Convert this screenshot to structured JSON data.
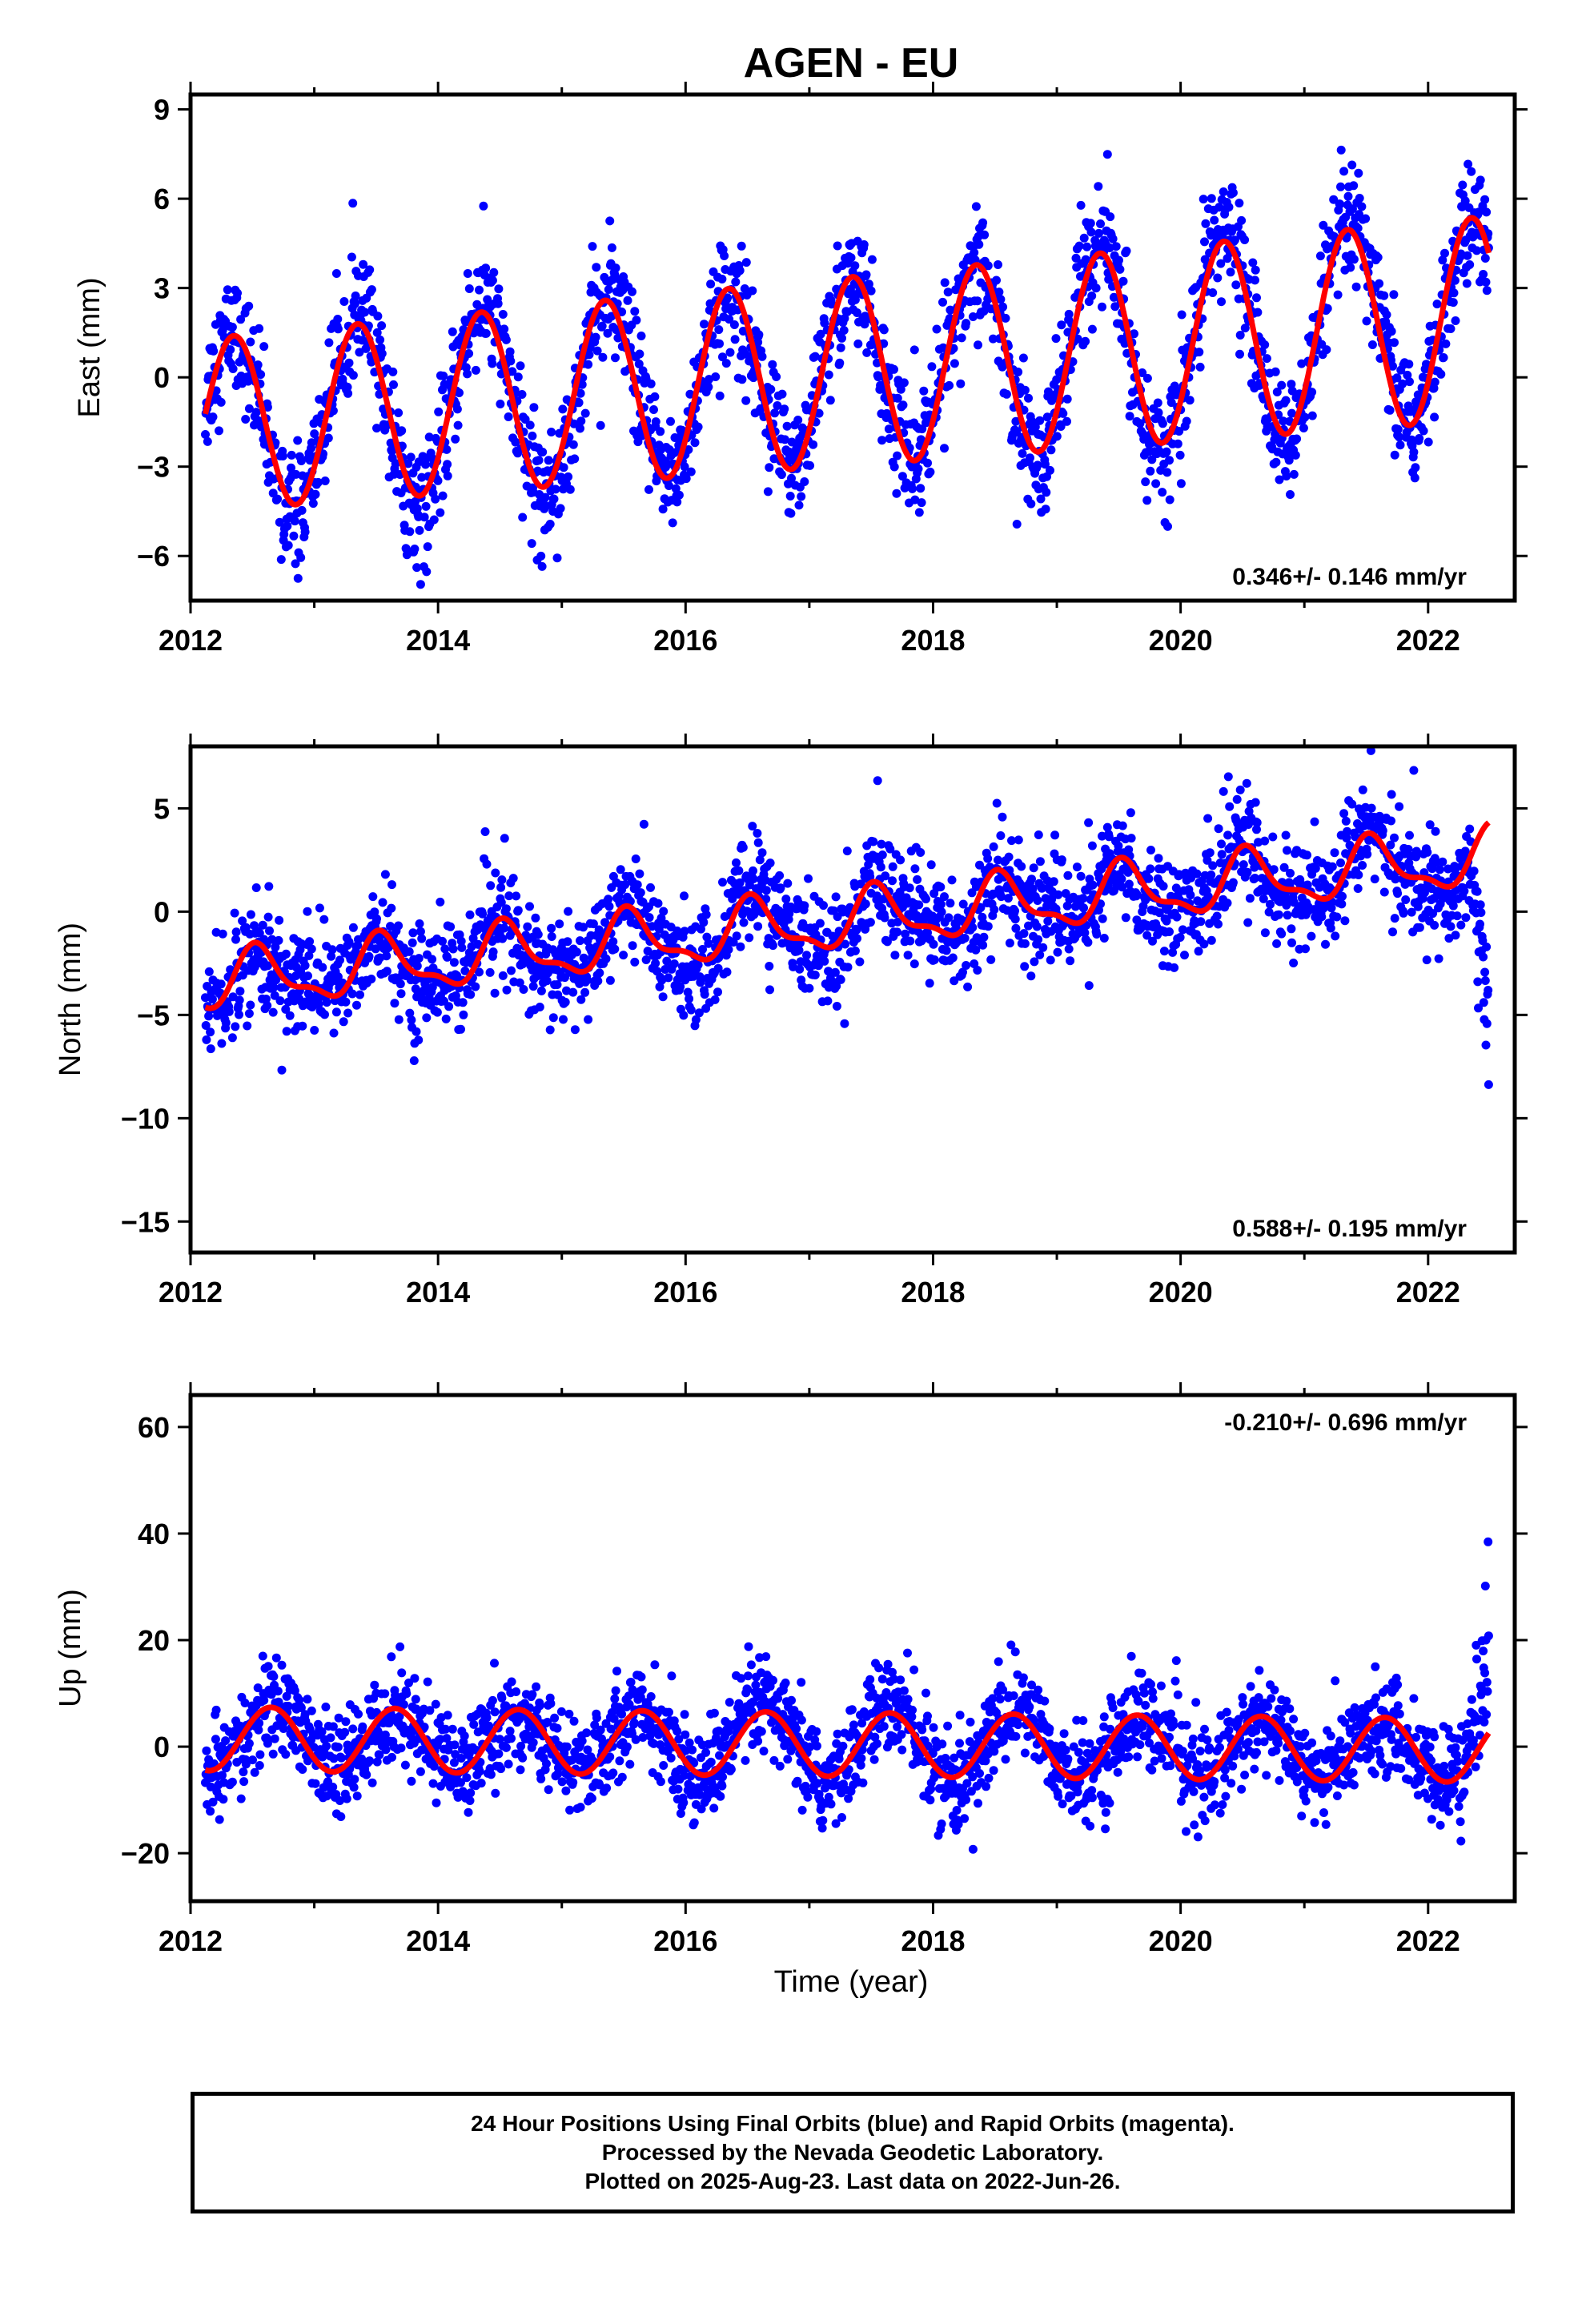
{
  "title": "AGEN - EU",
  "xlabel": "Time (year)",
  "footer": {
    "line1": "24 Hour Positions Using Final Orbits (blue) and Rapid Orbits (magenta).",
    "line2": "Processed by the Nevada Geodetic Laboratory.",
    "line3": "Plotted on 2025-Aug-23. Last data on 2022-Jun-26."
  },
  "colors": {
    "points": "#0000ff",
    "fit": "#ff0000",
    "frame": "#000000"
  },
  "chart_data": [
    {
      "type": "scatter",
      "ylabel": "East (mm)",
      "rate_text": "0.346+/- 0.146 mm/yr",
      "legend_position": "bottom-right",
      "xlim": [
        2012.0,
        2022.7
      ],
      "ylim": [
        -7.5,
        9.5
      ],
      "xticks": [
        "2012",
        "2014",
        "2016",
        "2018",
        "2020",
        "2022"
      ],
      "yticks": [
        -6,
        -3,
        0,
        3,
        6,
        9
      ],
      "fit": {
        "intercept": -1.6,
        "rate": 0.346,
        "annual_amplitude": 2.9,
        "amplitude_growth_per_year": 0.05,
        "annual_peak": 0.35,
        "semiannual_amplitude": 0.0
      },
      "scatter_sd": 1.0,
      "series": [
        {
          "name": "Final Orbits (blue)",
          "style": "points"
        },
        {
          "name": "fit",
          "style": "line"
        }
      ]
    },
    {
      "type": "scatter",
      "ylabel": "North (mm)",
      "rate_text": "0.588+/- 0.195 mm/yr",
      "legend_position": "bottom-right",
      "xlim": [
        2012.0,
        2022.7
      ],
      "ylim": [
        -16.5,
        8.0
      ],
      "xticks": [
        "2012",
        "2014",
        "2016",
        "2018",
        "2020",
        "2022"
      ],
      "yticks": [
        -15,
        -10,
        -5,
        0,
        5
      ],
      "fit": {
        "intercept": -3.5,
        "rate": 0.588,
        "annual_amplitude": 1.3,
        "annual_peak": 0.55,
        "semiannual_amplitude": 0.5,
        "semiannual_peak": 0.5
      },
      "scatter_sd": 1.3,
      "series": [
        {
          "name": "Final Orbits (blue)",
          "style": "points"
        },
        {
          "name": "fit",
          "style": "line"
        }
      ]
    },
    {
      "type": "scatter",
      "ylabel": "Up (mm)",
      "rate_text": "-0.210+/- 0.696 mm/yr",
      "legend_position": "top-right",
      "xlim": [
        2012.0,
        2022.7
      ],
      "ylim": [
        -29,
        66
      ],
      "xticks": [
        "2012",
        "2014",
        "2016",
        "2018",
        "2020",
        "2022"
      ],
      "yticks": [
        -20,
        0,
        20,
        40,
        60
      ],
      "fit": {
        "intercept": 1.5,
        "rate": -0.21,
        "annual_amplitude": 6.0,
        "annual_peak": 0.65,
        "semiannual_amplitude": 0.0
      },
      "scatter_sd": 4.5,
      "series": [
        {
          "name": "Final Orbits (blue)",
          "style": "points"
        },
        {
          "name": "fit",
          "style": "line"
        }
      ]
    }
  ]
}
